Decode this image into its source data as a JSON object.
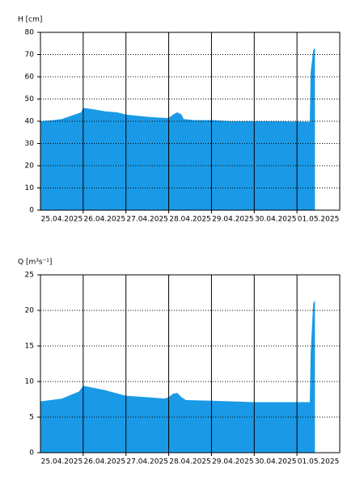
{
  "chart_data": [
    {
      "type": "area",
      "ylabel": "H [cm]",
      "color": "#1a9ae6",
      "xlim": [
        0,
        7
      ],
      "ylim": [
        0,
        80
      ],
      "yticks": [
        0,
        10,
        20,
        30,
        40,
        50,
        60,
        70,
        80
      ],
      "xticks": [
        {
          "value": 0.5,
          "label": "25.04.2025"
        },
        {
          "value": 1.5,
          "label": "26.04.2025"
        },
        {
          "value": 2.5,
          "label": "27.04.2025"
        },
        {
          "value": 3.5,
          "label": "28.04.2025"
        },
        {
          "value": 4.5,
          "label": "29.04.2025"
        },
        {
          "value": 5.5,
          "label": "30.04.2025"
        },
        {
          "value": 6.5,
          "label": "01.05.2025"
        }
      ],
      "xgrid": [
        1,
        2,
        3,
        4,
        5,
        6
      ],
      "grid": true,
      "x": [
        0,
        0.3,
        0.5,
        0.8,
        0.95,
        1.0,
        1.2,
        1.5,
        1.8,
        2.0,
        2.5,
        2.9,
        3.0,
        3.1,
        3.2,
        3.3,
        3.35,
        3.6,
        4.0,
        4.5,
        5.0,
        5.5,
        6.0,
        6.3,
        6.32,
        6.38,
        6.42
      ],
      "values": [
        40,
        40.5,
        41,
        43,
        44,
        46,
        45.5,
        44.5,
        44,
        43,
        42,
        41.5,
        41.5,
        43,
        44,
        43,
        41,
        40.5,
        40.5,
        40,
        40,
        40,
        39.8,
        39.8,
        62,
        72,
        73
      ]
    },
    {
      "type": "area",
      "ylabel": "Q [m³s⁻¹]",
      "color": "#1a9ae6",
      "xlim": [
        0,
        7
      ],
      "ylim": [
        0,
        25
      ],
      "yticks": [
        0,
        5,
        10,
        15,
        20,
        25
      ],
      "xticks": [
        {
          "value": 0.5,
          "label": "25.04.2025"
        },
        {
          "value": 1.5,
          "label": "26.04.2025"
        },
        {
          "value": 2.5,
          "label": "27.04.2025"
        },
        {
          "value": 3.5,
          "label": "28.04.2025"
        },
        {
          "value": 4.5,
          "label": "29.04.2025"
        },
        {
          "value": 5.5,
          "label": "30.04.2025"
        },
        {
          "value": 6.5,
          "label": "01.05.2025"
        }
      ],
      "xgrid": [
        1,
        2,
        3,
        4,
        5,
        6
      ],
      "grid": true,
      "x": [
        0,
        0.5,
        0.9,
        1.0,
        1.5,
        2.0,
        2.5,
        2.9,
        3.0,
        3.1,
        3.2,
        3.3,
        3.4,
        4.0,
        4.5,
        5.0,
        6.0,
        6.3,
        6.32,
        6.38,
        6.42
      ],
      "values": [
        7.2,
        7.6,
        8.6,
        9.4,
        8.8,
        8,
        7.8,
        7.6,
        7.8,
        8.3,
        8.4,
        7.8,
        7.4,
        7.3,
        7.2,
        7.1,
        7.1,
        7.1,
        14,
        21,
        21.4
      ]
    }
  ]
}
